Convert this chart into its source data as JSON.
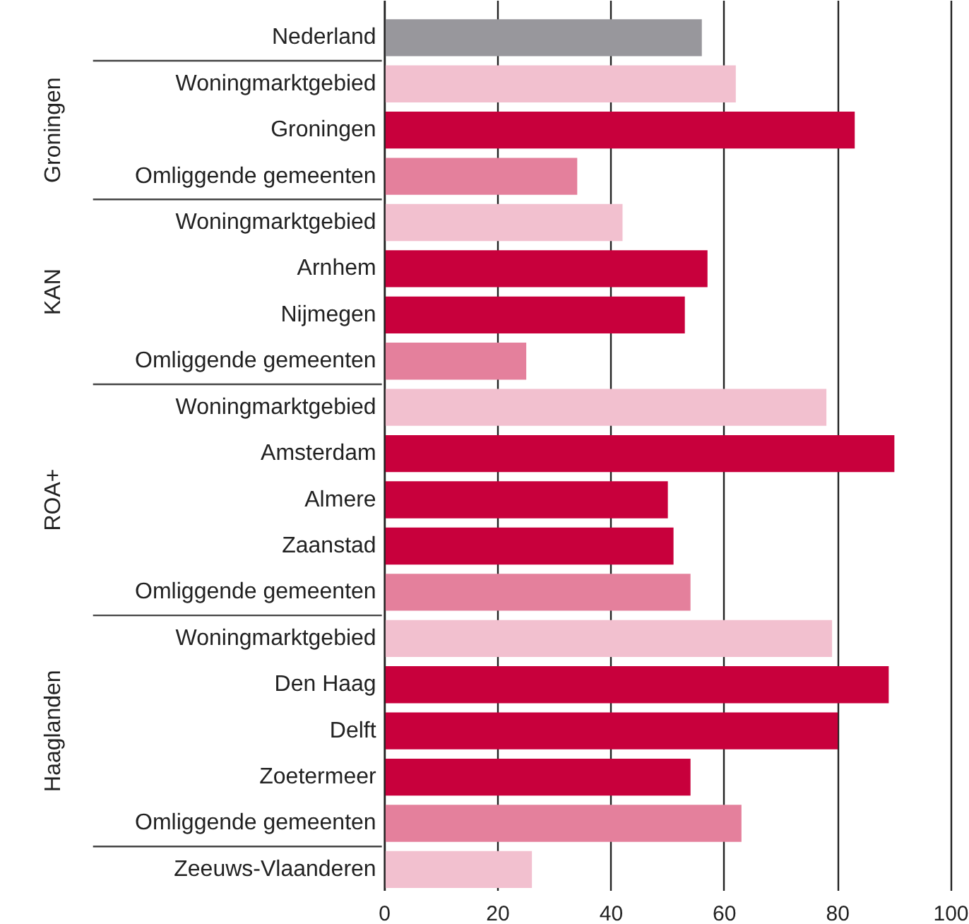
{
  "chart_data": {
    "type": "bar",
    "orientation": "horizontal",
    "categories": [
      "Nederland",
      "Woningmarktgebied",
      "Groningen",
      "Omliggende gemeenten",
      "Woningmarktgebied",
      "Arnhem",
      "Nijmegen",
      "Omliggende gemeenten",
      "Woningmarktgebied",
      "Amsterdam",
      "Almere",
      "Zaanstad",
      "Omliggende gemeenten",
      "Woningmarktgebied",
      "Den Haag",
      "Delft",
      "Zoetermeer",
      "Omliggende gemeenten",
      "Zeeuws-Vlaanderen"
    ],
    "values": [
      56,
      62,
      83,
      34,
      42,
      57,
      53,
      25,
      78,
      90,
      50,
      51,
      54,
      79,
      89,
      80,
      54,
      63,
      26
    ],
    "colors": [
      "#98979c",
      "#f2c0cf",
      "#c8003c",
      "#e4809c",
      "#f2c0cf",
      "#c8003c",
      "#c8003c",
      "#e4809c",
      "#f2c0cf",
      "#c8003c",
      "#c8003c",
      "#c8003c",
      "#e4809c",
      "#f2c0cf",
      "#c8003c",
      "#c8003c",
      "#c8003c",
      "#e4809c",
      "#f2c0cf"
    ],
    "xlim": [
      0,
      100
    ],
    "xticks": [
      0,
      20,
      40,
      60,
      80,
      100
    ],
    "grid": "x",
    "annotations": [
      "Groningen",
      "KAN",
      "ROA+",
      "Haaglanden"
    ]
  }
}
